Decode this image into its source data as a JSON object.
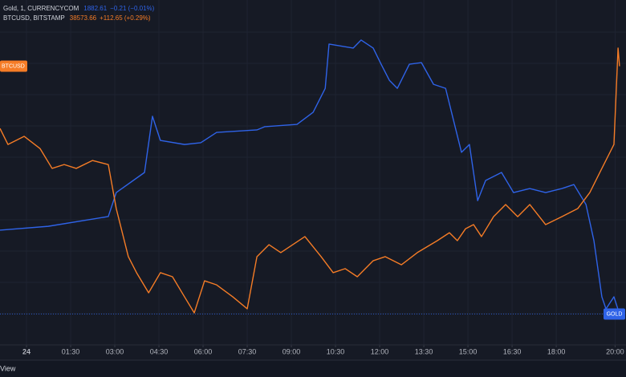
{
  "chart_data": {
    "type": "line",
    "xticks": [
      {
        "value": 0,
        "label": "24"
      },
      {
        "value": 1.5,
        "label": "01:30"
      },
      {
        "value": 3,
        "label": "03:00"
      },
      {
        "value": 4.5,
        "label": "04:30"
      },
      {
        "value": 6,
        "label": "06:00"
      },
      {
        "value": 7.5,
        "label": "07:30"
      },
      {
        "value": 9,
        "label": "09:00"
      },
      {
        "value": 10.5,
        "label": "10:30"
      },
      {
        "value": 12,
        "label": "12:00"
      },
      {
        "value": 13.5,
        "label": "13:30"
      },
      {
        "value": 15,
        "label": "15:00"
      },
      {
        "value": 16.5,
        "label": "16:30"
      },
      {
        "value": 18,
        "label": "18:00"
      },
      {
        "value": 20,
        "label": "20:00"
      }
    ],
    "xlim": [
      -0.9,
      20.37
    ],
    "ylim": [
      1881,
      1899
    ],
    "y2lim": [
      37200,
      38900
    ],
    "grid": true,
    "series": [
      {
        "name": "Gold, 1, CURRENCYCOM",
        "tag": "GOLD",
        "price_label": "1882.61",
        "change_label": "−0.21 (−0.01%)",
        "color": "#2f63e8",
        "axis": "y",
        "x": [
          -0.9,
          0.74,
          2.78,
          3.05,
          4.01,
          4.28,
          4.55,
          5.37,
          5.92,
          6.46,
          7.83,
          8.1,
          9.19,
          9.74,
          10.15,
          10.28,
          11.1,
          11.37,
          11.78,
          12.05,
          12.33,
          12.6,
          13.01,
          13.42,
          13.83,
          14.24,
          14.51,
          14.78,
          15.05,
          15.33,
          15.6,
          16.14,
          16.55,
          17.1,
          17.64,
          18.19,
          18.6,
          19.01,
          19.28,
          19.55,
          19.69,
          19.96,
          20.15
        ],
        "values": [
          1886.99,
          1887.19,
          1887.7,
          1888.95,
          1890.0,
          1892.93,
          1891.67,
          1891.46,
          1891.55,
          1892.09,
          1892.22,
          1892.39,
          1892.51,
          1893.14,
          1894.39,
          1896.7,
          1896.49,
          1896.91,
          1896.49,
          1895.65,
          1894.81,
          1894.39,
          1895.65,
          1895.73,
          1894.6,
          1894.39,
          1892.72,
          1891.05,
          1891.46,
          1888.53,
          1889.58,
          1890.0,
          1888.95,
          1889.16,
          1888.95,
          1889.16,
          1889.37,
          1888.33,
          1886.44,
          1883.51,
          1882.88,
          1883.51,
          1882.61
        ]
      },
      {
        "name": "BTCUSD, BITSTAMP",
        "tag": "BTCUSD",
        "price_label": "38573.66",
        "change_label": "+112.65 (+0.29%)",
        "color": "#f57c26",
        "axis": "y2",
        "x": [
          -0.9,
          -0.63,
          -0.08,
          0.46,
          0.87,
          1.28,
          1.69,
          2.24,
          2.78,
          3.05,
          3.46,
          3.74,
          4.15,
          4.55,
          4.96,
          5.37,
          5.7,
          6.05,
          6.46,
          7.01,
          7.5,
          7.83,
          8.24,
          8.64,
          9.46,
          10.01,
          10.42,
          10.83,
          11.24,
          11.78,
          12.19,
          12.74,
          13.28,
          13.96,
          14.37,
          14.64,
          14.92,
          15.19,
          15.46,
          15.87,
          16.28,
          16.69,
          17.1,
          17.64,
          18.19,
          18.73,
          19.14,
          19.55,
          19.96,
          20.1,
          20.15
        ],
        "values": [
          38267,
          38188,
          38228,
          38168,
          38070,
          38089,
          38070,
          38109,
          38089,
          37872,
          37635,
          37556,
          37457,
          37556,
          37536,
          37437,
          37358,
          37516,
          37496,
          37437,
          37378,
          37635,
          37694,
          37655,
          37734,
          37635,
          37556,
          37576,
          37536,
          37615,
          37635,
          37595,
          37655,
          37714,
          37753,
          37714,
          37773,
          37793,
          37734,
          37832,
          37892,
          37832,
          37892,
          37793,
          37832,
          37872,
          37951,
          38070,
          38188,
          38663,
          38573.66
        ]
      }
    ],
    "footer": "View"
  }
}
